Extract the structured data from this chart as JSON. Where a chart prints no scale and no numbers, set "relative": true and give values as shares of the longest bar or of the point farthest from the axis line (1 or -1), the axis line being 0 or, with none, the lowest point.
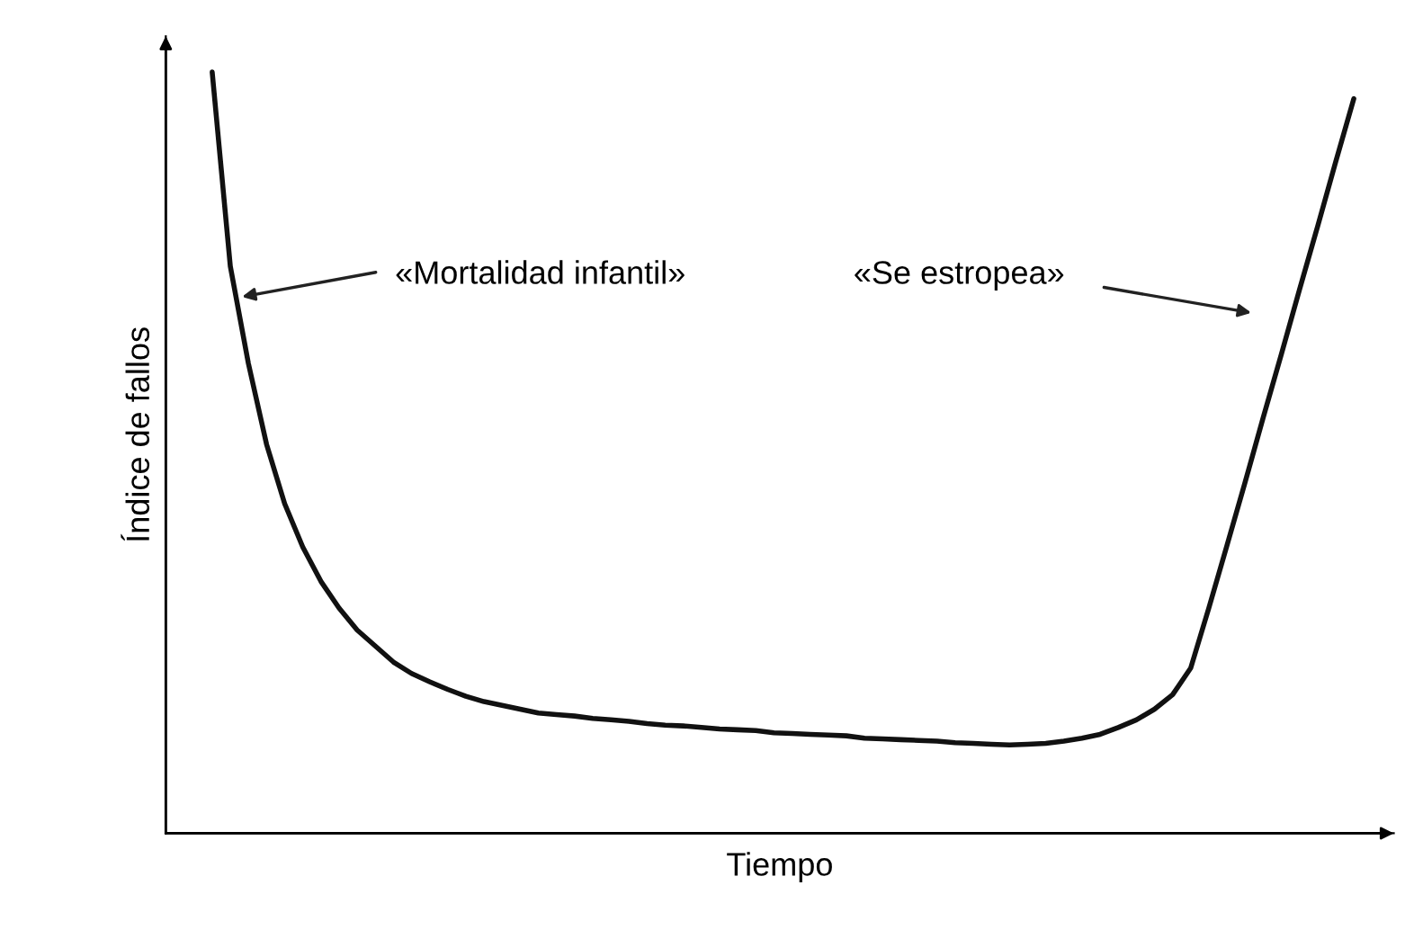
{
  "chart_data": {
    "type": "line",
    "relative": true,
    "xlabel": "Tiempo",
    "ylabel": "Índice de fallos",
    "categories": [
      null,
      null,
      null,
      null,
      null,
      null,
      null,
      null,
      null,
      null,
      null,
      null,
      null,
      null,
      null,
      null,
      null,
      null,
      null,
      null,
      null,
      null,
      null,
      null,
      null,
      null,
      null,
      null,
      null,
      null,
      null,
      null,
      null,
      null,
      null,
      null,
      null,
      null,
      null,
      null,
      null,
      null,
      null,
      null,
      null,
      null,
      null,
      null,
      null,
      null,
      null,
      null,
      null,
      null,
      null,
      null,
      null,
      null,
      null,
      null,
      null,
      null,
      null,
      null
    ],
    "series": [
      {
        "color": "#111111",
        "values": [
          1.0,
          0.745,
          0.617,
          0.511,
          0.433,
          0.376,
          0.331,
          0.296,
          0.267,
          0.246,
          0.225,
          0.21,
          0.199,
          0.189,
          0.18,
          0.173,
          0.168,
          0.163,
          0.158,
          0.156,
          0.154,
          0.151,
          0.149,
          0.147,
          0.144,
          0.142,
          0.141,
          0.139,
          0.137,
          0.136,
          0.135,
          0.132,
          0.131,
          0.13,
          0.129,
          0.128,
          0.125,
          0.124,
          0.123,
          0.122,
          0.121,
          0.119,
          0.118,
          0.117,
          0.116,
          0.117,
          0.118,
          0.121,
          0.125,
          0.13,
          0.139,
          0.149,
          0.163,
          0.182,
          0.217,
          0.296,
          0.378,
          0.461,
          0.546,
          0.629,
          0.714,
          0.797,
          0.882,
          0.965
        ]
      }
    ],
    "annotations": [
      "«Mortalidad infantil»",
      "«Se estropea»"
    ],
    "grid": false,
    "marker": "none",
    "line_style": "solid"
  }
}
